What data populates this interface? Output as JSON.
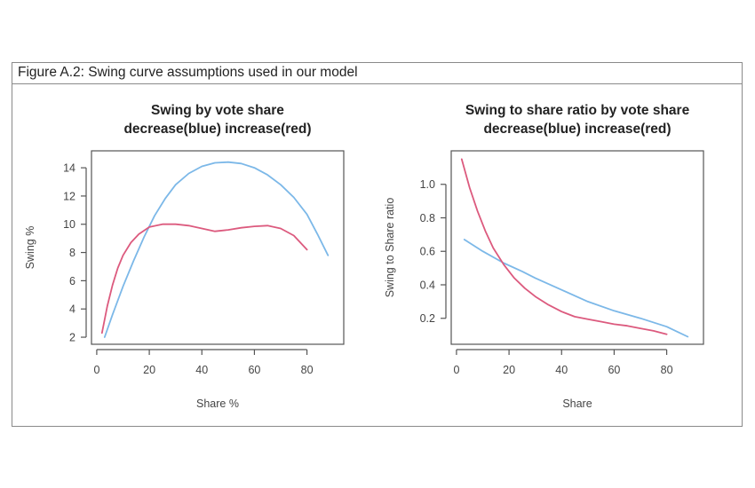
{
  "figure": {
    "caption": "Figure A.2:  Swing curve assumptions used in our model"
  },
  "colors": {
    "decrease": "#7cb8e8",
    "increase": "#dc5a7e",
    "axis": "#555555",
    "frame": "#8a8a8a"
  },
  "chart_data": [
    {
      "type": "line",
      "title": "Swing by vote share",
      "subtitle": "decrease(blue) increase(red)",
      "xlabel": "Share %",
      "ylabel": "Swing %",
      "xlim": [
        -2,
        94
      ],
      "ylim": [
        1.5,
        15.2
      ],
      "xticks": [
        0,
        20,
        40,
        60,
        80
      ],
      "yticks": [
        2,
        4,
        6,
        8,
        10,
        12,
        14
      ],
      "grid": false,
      "legend": "none",
      "series": [
        {
          "name": "decrease (blue)",
          "color": "#7cb8e8",
          "x": [
            3,
            6,
            10,
            14,
            18,
            22,
            26,
            30,
            35,
            40,
            45,
            50,
            55,
            60,
            65,
            70,
            75,
            80,
            84,
            88
          ],
          "y": [
            2.0,
            3.6,
            5.6,
            7.4,
            9.1,
            10.6,
            11.8,
            12.8,
            13.6,
            14.1,
            14.35,
            14.4,
            14.3,
            14.0,
            13.5,
            12.8,
            11.9,
            10.7,
            9.3,
            7.8
          ]
        },
        {
          "name": "increase (red)",
          "color": "#dc5a7e",
          "x": [
            2,
            4,
            6,
            8,
            10,
            13,
            16,
            20,
            25,
            30,
            35,
            40,
            45,
            50,
            55,
            60,
            65,
            70,
            75,
            80
          ],
          "y": [
            2.3,
            4.2,
            5.7,
            6.9,
            7.8,
            8.7,
            9.3,
            9.8,
            10.0,
            10.0,
            9.9,
            9.7,
            9.5,
            9.6,
            9.75,
            9.85,
            9.9,
            9.7,
            9.2,
            8.2
          ]
        }
      ]
    },
    {
      "type": "line",
      "title": "Swing to share ratio by vote share",
      "subtitle": "decrease(blue) increase(red)",
      "xlabel": "Share",
      "ylabel": "Swing to Share ratio",
      "xlim": [
        -2,
        94
      ],
      "ylim": [
        0.045,
        1.2
      ],
      "xticks": [
        0,
        20,
        40,
        60,
        80
      ],
      "yticks": [
        "0.2",
        "0.4",
        "0.6",
        "0.8",
        "1.0"
      ],
      "grid": false,
      "legend": "none",
      "series": [
        {
          "name": "decrease (blue)",
          "color": "#7cb8e8",
          "x": [
            3,
            10,
            18,
            25,
            30,
            40,
            50,
            60,
            70,
            80,
            88
          ],
          "y": [
            0.67,
            0.6,
            0.53,
            0.48,
            0.44,
            0.37,
            0.3,
            0.245,
            0.2,
            0.15,
            0.09
          ]
        },
        {
          "name": "increase (red)",
          "color": "#dc5a7e",
          "x": [
            2,
            5,
            8,
            11,
            14,
            18,
            22,
            26,
            30,
            35,
            40,
            45,
            50,
            55,
            60,
            65,
            70,
            75,
            80
          ],
          "y": [
            1.15,
            0.98,
            0.84,
            0.72,
            0.62,
            0.52,
            0.44,
            0.38,
            0.33,
            0.28,
            0.24,
            0.21,
            0.195,
            0.18,
            0.165,
            0.155,
            0.14,
            0.125,
            0.105
          ]
        }
      ]
    }
  ]
}
